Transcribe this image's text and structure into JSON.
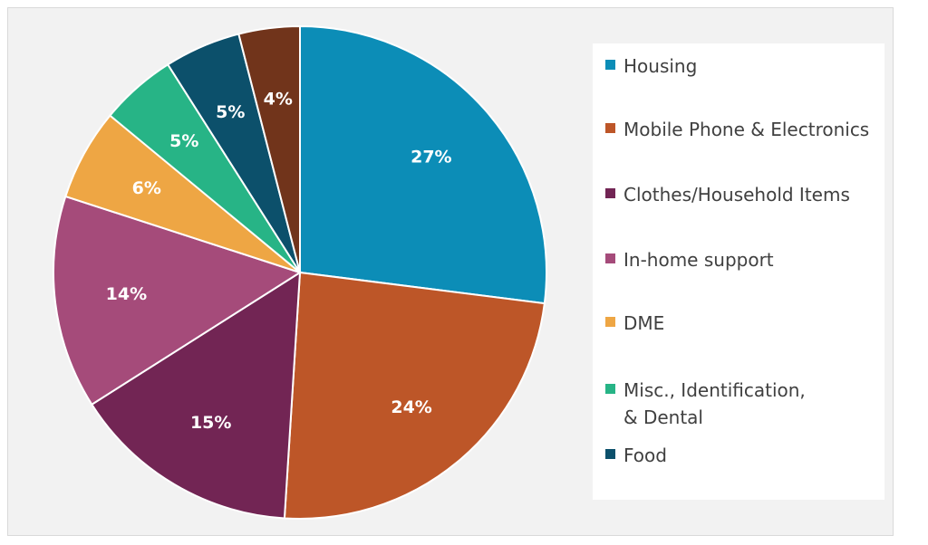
{
  "chart_data": {
    "type": "pie",
    "title": "",
    "slices": [
      {
        "label": "Housing",
        "value": 27,
        "display": "27%",
        "color": "#0c8db7"
      },
      {
        "label": "Mobile Phone & Electronics",
        "value": 24,
        "display": "24%",
        "color": "#bd5628"
      },
      {
        "label": "Clothes/Household Items",
        "value": 15,
        "display": "15%",
        "color": "#722554"
      },
      {
        "label": "In-home support",
        "value": 14,
        "display": "14%",
        "color": "#a54b7a"
      },
      {
        "label": "DME",
        "value": 6,
        "display": "6%",
        "color": "#eea644"
      },
      {
        "label": "Misc., Identification, & Dental",
        "value": 5,
        "display": "5%",
        "color": "#27b486"
      },
      {
        "label": "Food",
        "value": 5,
        "display": "5%",
        "color": "#0c506b"
      },
      {
        "label": "",
        "value": 4,
        "display": "4%",
        "color": "#71341b"
      }
    ],
    "legend": {
      "position": "right",
      "entries": [
        "Housing",
        "Mobile Phone & Electronics",
        "Clothes/Household Items",
        "In-home support",
        "DME",
        "Misc., Identification, & Dental",
        "Food"
      ]
    }
  }
}
